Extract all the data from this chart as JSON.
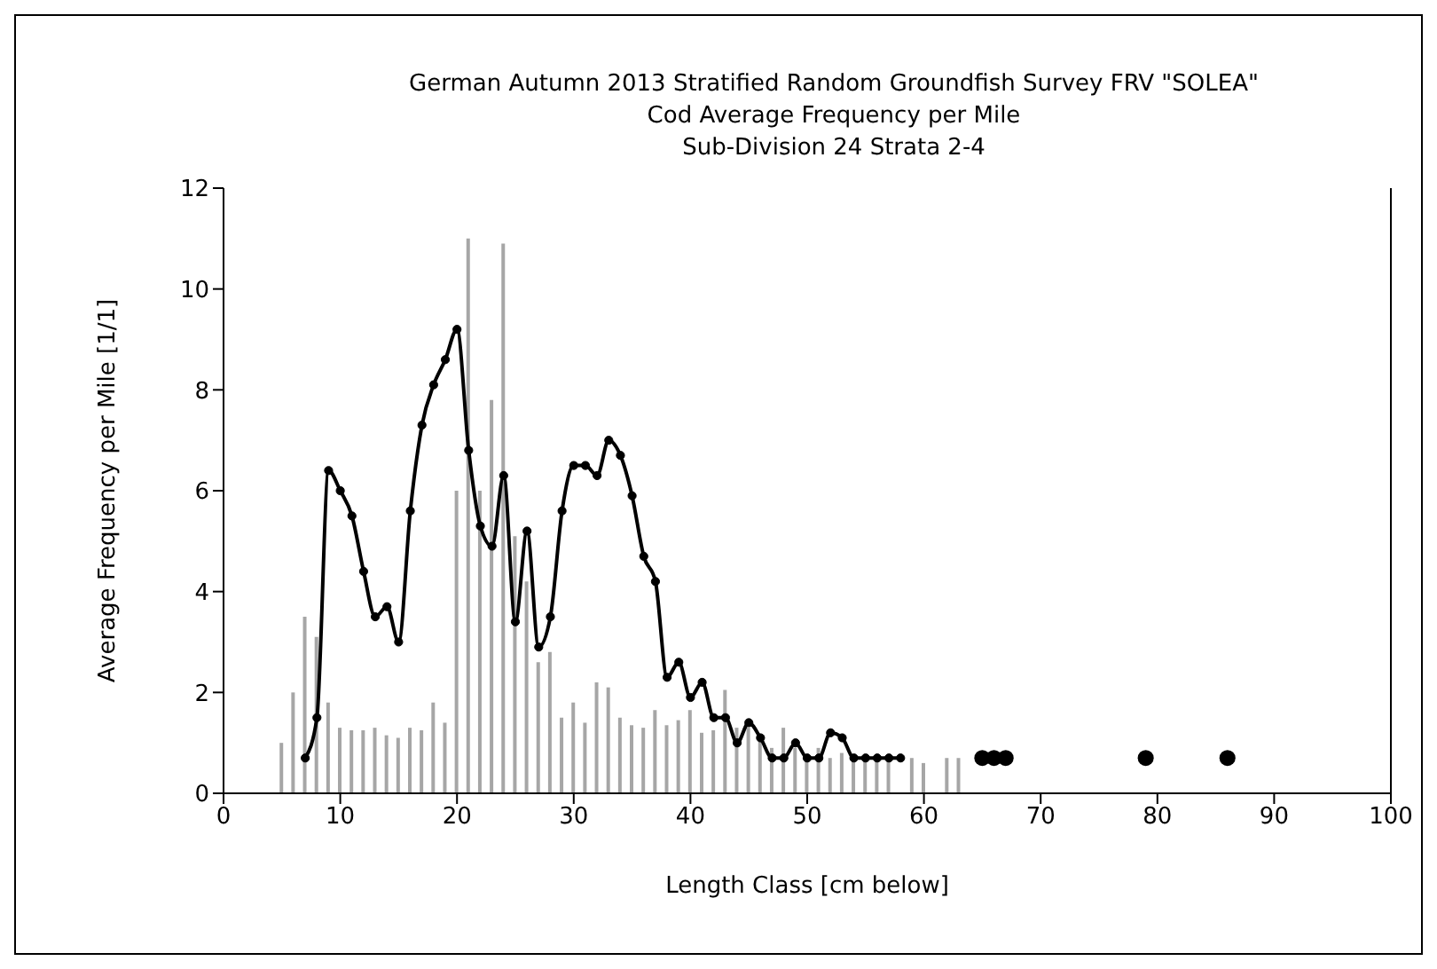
{
  "chart_data": {
    "type": "bar",
    "title": "German Autumn 2013 Stratified  Random Groundfish Survey FRV \"SOLEA\"",
    "subtitle": "Cod Average Frequency per Mile\nSub-Division  24 Strata 2-4",
    "xlabel": "Length Class [cm below]",
    "ylabel": "Average Frequency per Mile  [1/1]",
    "xlim": [
      0,
      100
    ],
    "xticks": [
      0,
      10,
      20,
      30,
      40,
      50,
      60,
      70,
      80,
      90,
      100
    ],
    "ylim": [
      0,
      12
    ],
    "yticks": [
      0,
      2,
      4,
      6,
      8,
      10,
      12
    ],
    "grid": false,
    "legend": false,
    "series": [
      {
        "type": "bar",
        "color": "#a6a6a6",
        "x": [
          5,
          6,
          7,
          8,
          9,
          10,
          11,
          12,
          13,
          14,
          15,
          16,
          17,
          18,
          19,
          20,
          21,
          22,
          23,
          24,
          25,
          26,
          27,
          28,
          29,
          30,
          31,
          32,
          33,
          34,
          35,
          36,
          37,
          38,
          39,
          40,
          41,
          42,
          43,
          44,
          45,
          46,
          47,
          48,
          49,
          50,
          51,
          52,
          53,
          54,
          55,
          56,
          57,
          58,
          59,
          60,
          61,
          62,
          63
        ],
        "values": [
          1.0,
          2.0,
          3.5,
          3.1,
          1.8,
          1.3,
          1.25,
          1.25,
          1.3,
          1.15,
          1.1,
          1.3,
          1.25,
          1.8,
          1.4,
          6.0,
          11.0,
          6.0,
          7.8,
          10.9,
          5.1,
          4.2,
          2.6,
          2.8,
          1.5,
          1.8,
          1.4,
          2.2,
          2.1,
          1.5,
          1.35,
          1.3,
          1.65,
          1.35,
          1.45,
          1.65,
          1.2,
          1.25,
          2.05,
          1.3,
          1.3,
          1.1,
          0.9,
          1.3,
          0.9,
          0.7,
          0.9,
          0.7,
          0.8,
          0.65,
          0.65,
          0.7,
          0.7,
          null,
          0.7,
          0.6,
          null,
          0.7,
          0.7
        ]
      },
      {
        "type": "line",
        "color": "#000000",
        "marker": "circle",
        "line_style": "solid",
        "x": [
          7,
          8,
          9,
          10,
          11,
          12,
          13,
          14,
          15,
          16,
          17,
          18,
          19,
          20,
          21,
          22,
          23,
          24,
          25,
          26,
          27,
          28,
          29,
          30,
          31,
          32,
          33,
          34,
          35,
          36,
          37,
          38,
          39,
          40,
          41,
          42,
          43,
          44,
          45,
          46,
          47,
          48,
          49,
          50,
          51,
          52,
          53,
          54,
          55,
          56,
          57,
          58
        ],
        "values": [
          0.7,
          1.5,
          6.4,
          6.0,
          5.5,
          4.4,
          3.5,
          3.7,
          3.0,
          5.6,
          7.3,
          8.1,
          8.6,
          9.2,
          6.8,
          5.3,
          4.9,
          6.3,
          3.4,
          5.2,
          2.9,
          3.5,
          5.6,
          6.5,
          6.5,
          6.3,
          7.0,
          6.7,
          5.9,
          4.7,
          4.2,
          2.3,
          2.6,
          1.9,
          2.2,
          1.5,
          1.5,
          1.0,
          1.4,
          1.1,
          0.7,
          0.7,
          1.0,
          0.7,
          0.7,
          1.2,
          1.1,
          0.7,
          0.7,
          0.7,
          0.7,
          0.7
        ]
      },
      {
        "type": "scatter",
        "color": "#000000",
        "marker": "circle",
        "x": [
          65,
          66,
          67,
          79,
          86
        ],
        "values": [
          0.7,
          0.7,
          0.7,
          0.7,
          0.7
        ]
      }
    ]
  }
}
